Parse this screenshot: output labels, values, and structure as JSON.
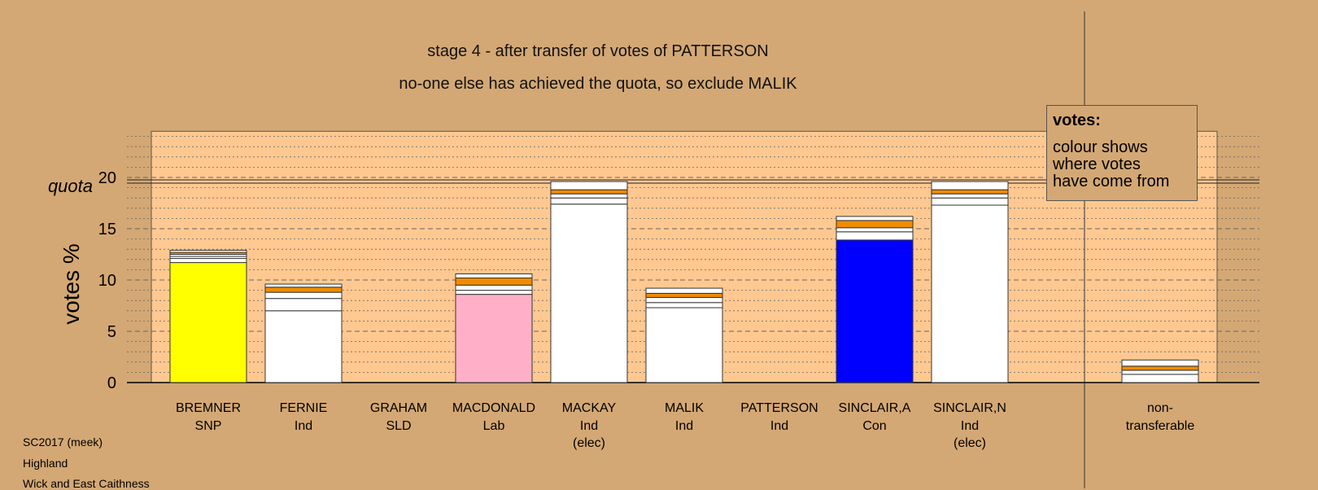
{
  "title1": "stage 4 - after transfer of votes of PATTERSON",
  "title2": "no-one else has achieved the quota, so exclude MALIK",
  "legend": {
    "title": "votes:",
    "lines": [
      "colour shows",
      "where votes",
      "have come from"
    ]
  },
  "footer": [
    "SC2017 (meek)",
    "Highland",
    "Wick and East Caithness"
  ],
  "chart_data": {
    "type": "bar",
    "stacked": true,
    "ylabel": "votes %",
    "ylim": [
      0,
      24.5
    ],
    "yticks": [
      0,
      5,
      10,
      15,
      20
    ],
    "quota": 19.6,
    "quota_label": "quota",
    "candidates": [
      {
        "name": "BREMNER",
        "party": "SNP",
        "note": "",
        "color": "#ffff00",
        "segments": [
          11.7,
          0.4,
          0.2,
          0.2,
          0.2,
          0.2
        ]
      },
      {
        "name": "FERNIE",
        "party": "Ind",
        "note": "",
        "color": "#ffffff",
        "segments": [
          7.0,
          1.2,
          0.6,
          0.5,
          0.3
        ]
      },
      {
        "name": "GRAHAM",
        "party": "SLD",
        "note": "",
        "color": "#ffffff",
        "segments": []
      },
      {
        "name": "MACDONALD",
        "party": "Lab",
        "note": "",
        "color": "#ffb0c8",
        "segments": [
          8.6,
          0.4,
          0.5,
          0.7,
          0.4
        ]
      },
      {
        "name": "MACKAY",
        "party": "Ind",
        "note": "(elec)",
        "color": "#ffffff",
        "segments": [
          17.4,
          0.6,
          0.4,
          0.4,
          0.8
        ]
      },
      {
        "name": "MALIK",
        "party": "Ind",
        "note": "",
        "color": "#ffffff",
        "segments": [
          7.3,
          0.5,
          0.5,
          0.4,
          0.5
        ]
      },
      {
        "name": "PATTERSON",
        "party": "Ind",
        "note": "",
        "color": "#ffffff",
        "segments": []
      },
      {
        "name": "SINCLAIR,A",
        "party": "Con",
        "note": "",
        "color": "#0000ff",
        "segments": [
          13.9,
          0.8,
          0.4,
          0.7,
          0.4
        ]
      },
      {
        "name": "SINCLAIR,N",
        "party": "Ind",
        "note": "(elec)",
        "color": "#ffffff",
        "segments": [
          17.3,
          0.7,
          0.4,
          0.4,
          0.8
        ]
      }
    ],
    "nontransferable": {
      "label": [
        "non-",
        "transferable"
      ],
      "segments": [
        0.8,
        0.4,
        0.4,
        0.6
      ]
    }
  }
}
